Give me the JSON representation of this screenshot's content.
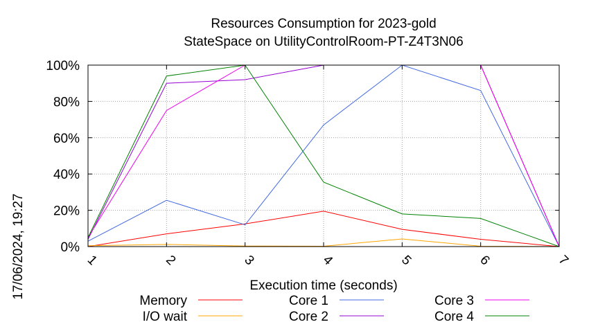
{
  "chart_data": {
    "type": "line",
    "title_line1": "Resources Consumption for 2023-gold",
    "title_line2": "StateSpace on UtilityControlRoom-PT-Z4T3N06",
    "xlabel": "Execution time (seconds)",
    "ylabel": "",
    "side_label": "17/06/2024, 19:27",
    "x": [
      1,
      2,
      3,
      4,
      5,
      6,
      7
    ],
    "x_ticks": [
      "1",
      "2",
      "3",
      "4",
      "5",
      "6",
      "7"
    ],
    "y_ticks": [
      "0%",
      "20%",
      "40%",
      "60%",
      "80%",
      "100%"
    ],
    "xlim": [
      1,
      7
    ],
    "ylim": [
      0,
      100
    ],
    "grid": true,
    "legend_position": "bottom",
    "series": [
      {
        "name": "Memory",
        "color": "#ff0000",
        "values": [
          0,
          7,
          12.5,
          19.5,
          9.5,
          4,
          0
        ]
      },
      {
        "name": "I/O wait",
        "color": "#ffa500",
        "values": [
          0.5,
          1.2,
          0.3,
          0.2,
          4.2,
          0.2,
          0
        ]
      },
      {
        "name": "Core 1",
        "color": "#4169e1",
        "values": [
          3,
          25.5,
          12,
          67,
          100,
          86,
          0
        ]
      },
      {
        "name": "Core 2",
        "color": "#9400d3",
        "values": [
          4,
          90,
          92,
          100,
          100,
          100,
          0
        ]
      },
      {
        "name": "Core 3",
        "color": "#ee00ee",
        "values": [
          5,
          75,
          100,
          100,
          100,
          100,
          0
        ]
      },
      {
        "name": "Core 4",
        "color": "#008000",
        "values": [
          5,
          94,
          100,
          35.5,
          18,
          15.5,
          0
        ]
      }
    ]
  }
}
